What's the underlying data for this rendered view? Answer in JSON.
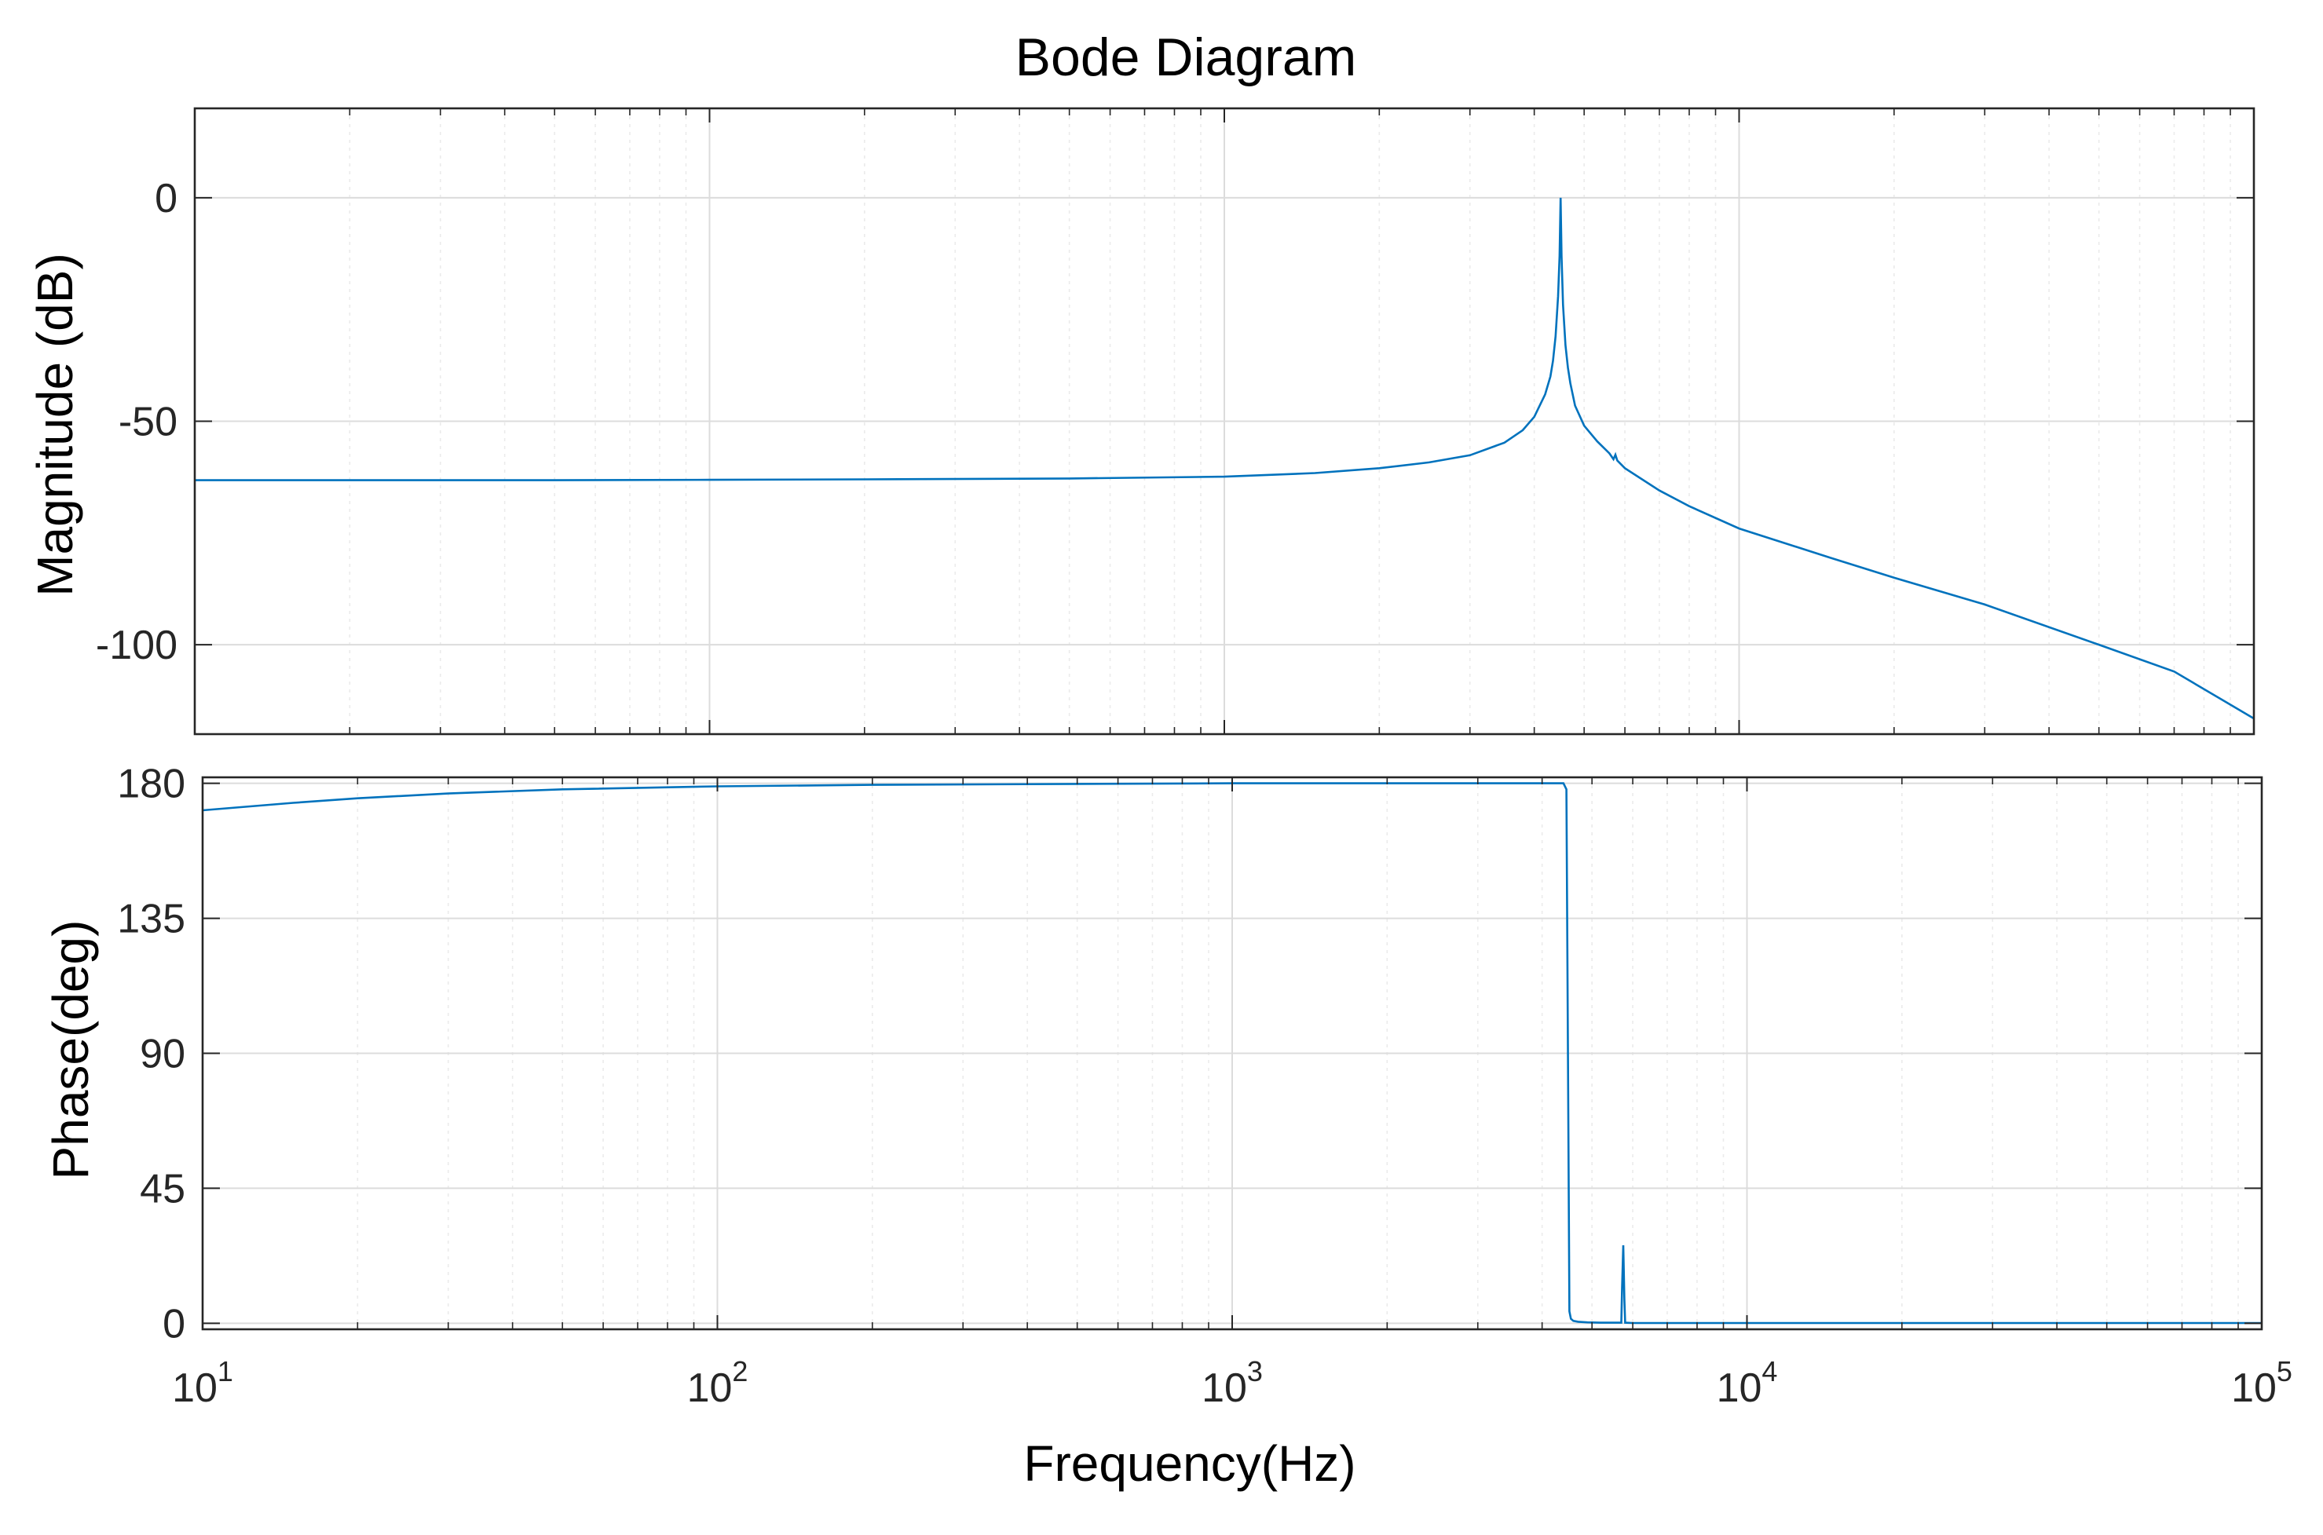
{
  "title": "Bode Diagram",
  "colors": {
    "series": "#0072BD",
    "axes": "#262626",
    "grid_major": "#dcdcdc",
    "grid_minor": "#ebebeb",
    "background": "#ffffff"
  },
  "chart_data": [
    {
      "type": "line",
      "name": "magnitude",
      "ylabel": "Magnitude (dB)",
      "xscale": "log",
      "xlim": [
        10,
        100000
      ],
      "ylim": [
        -120,
        20
      ],
      "yticks": [
        0,
        -50,
        -100
      ],
      "grid": true,
      "x": [
        10,
        20,
        50,
        100,
        200,
        500,
        1000,
        1500,
        2000,
        2500,
        3000,
        3500,
        3800,
        4000,
        4200,
        4300,
        4350,
        4400,
        4450,
        4480,
        4500,
        4520,
        4550,
        4600,
        4650,
        4700,
        4800,
        5000,
        5300,
        5600,
        5700,
        5750,
        5800,
        6000,
        7000,
        8000,
        10000,
        15000,
        20000,
        30000,
        50000,
        70000,
        100000
      ],
      "y": [
        -63.2,
        -63.2,
        -63.2,
        -63.1,
        -63.0,
        -62.8,
        -62.4,
        -61.6,
        -60.5,
        -59.2,
        -57.6,
        -54.8,
        -52.0,
        -49.0,
        -44.0,
        -40.0,
        -36.5,
        -31.0,
        -22.0,
        -13.0,
        0.0,
        -13.0,
        -24.0,
        -33.0,
        -38.0,
        -41.5,
        -46.5,
        -51.0,
        -54.5,
        -57.2,
        -58.5,
        -57.5,
        -58.8,
        -60.5,
        -65.5,
        -69.0,
        -74.0,
        -80.5,
        -85.0,
        -91.0,
        -100.0,
        -106.0,
        -116.5
      ]
    },
    {
      "type": "line",
      "name": "phase",
      "ylabel": "Phase(deg)",
      "xlabel": "Frequency(Hz)",
      "xscale": "log",
      "xlim": [
        10,
        100000
      ],
      "ylim": [
        -2,
        182
      ],
      "yticks": [
        180,
        135,
        90,
        45,
        0
      ],
      "xticks": [
        {
          "base": "10",
          "exp": "1"
        },
        {
          "base": "10",
          "exp": "2"
        },
        {
          "base": "10",
          "exp": "3"
        },
        {
          "base": "10",
          "exp": "4"
        },
        {
          "base": "10",
          "exp": "5"
        }
      ],
      "grid": true,
      "x": [
        10,
        15,
        20,
        30,
        50,
        100,
        200,
        500,
        1000,
        2000,
        3000,
        4000,
        4400,
        4460,
        4480,
        4500,
        4520,
        4550,
        4600,
        4700,
        4900,
        5200,
        5500,
        5700,
        5720,
        5750,
        5780,
        5800,
        6000,
        10000,
        100000
      ],
      "y": [
        171.0,
        173.5,
        175.0,
        176.6,
        178.0,
        179.0,
        179.5,
        179.8,
        180.0,
        180.0,
        180.0,
        180.0,
        180.0,
        178.0,
        120.0,
        60.0,
        4.0,
        1.5,
        0.8,
        0.5,
        0.3,
        0.2,
        0.2,
        0.2,
        12.0,
        26.0,
        8.0,
        0.2,
        0.1,
        0.1,
        0.1
      ]
    }
  ]
}
